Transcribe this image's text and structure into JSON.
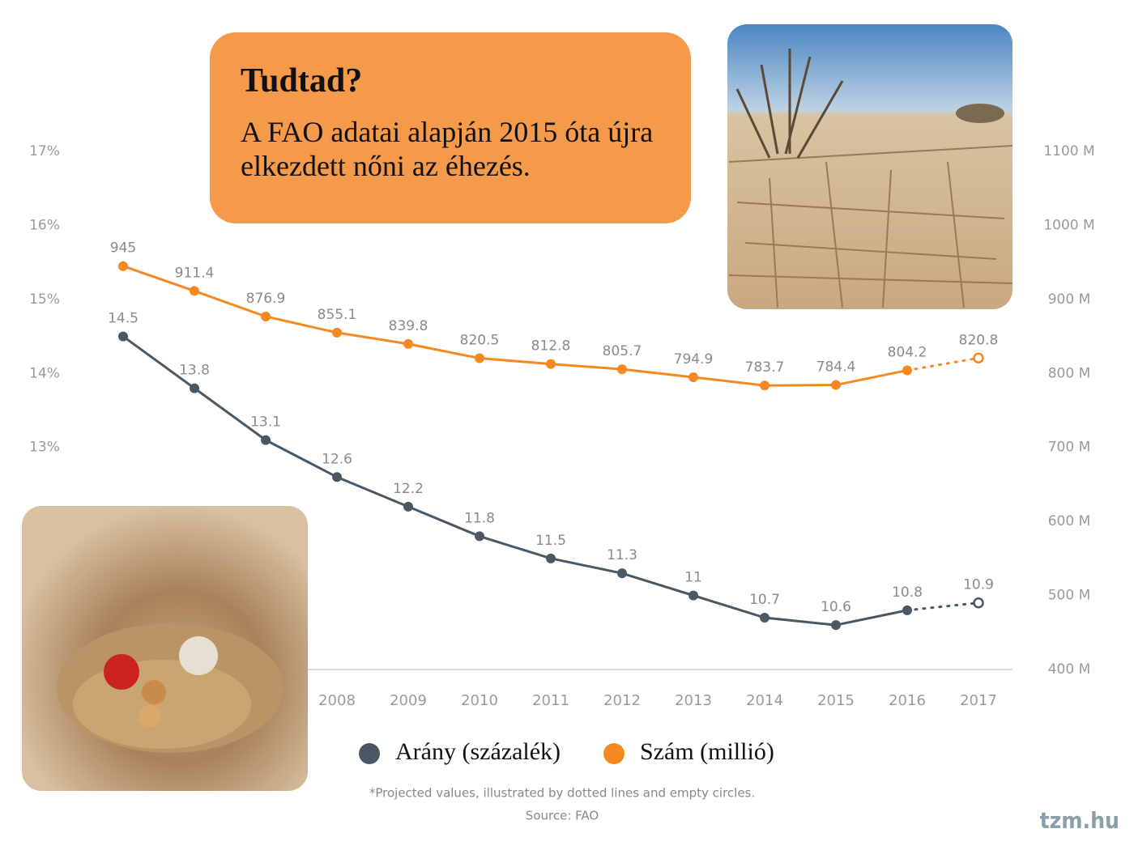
{
  "callout": {
    "title": "Tudtad?",
    "text": "A FAO adatai alapján 2015 óta újra elkezdett nőni az éhezés."
  },
  "chart_data": {
    "type": "line",
    "categories": [
      null,
      null,
      null,
      "2008",
      "2009",
      "2010",
      "2011",
      "2012",
      "2013",
      "2014",
      "2015",
      "2016",
      "2017"
    ],
    "series": [
      {
        "name": "Arány (százalék)",
        "color": "#4a5866",
        "values": [
          14.5,
          13.8,
          13.1,
          12.6,
          12.2,
          11.8,
          11.5,
          11.3,
          11,
          10.7,
          10.6,
          10.8,
          10.9
        ]
      },
      {
        "name": "Szám (millió)",
        "color": "#f5891f",
        "axis": "y2",
        "values": [
          945,
          911.4,
          876.9,
          855.1,
          839.8,
          820.5,
          812.8,
          805.7,
          794.9,
          783.7,
          784.4,
          804.2,
          820.8
        ]
      }
    ],
    "projected_categories": [
      "2017"
    ],
    "ylim": [
      10,
      17
    ],
    "yticks": [
      {
        "value": 13,
        "label": "13%"
      },
      {
        "value": 14,
        "label": "14%"
      },
      {
        "value": 15,
        "label": "15%"
      },
      {
        "value": 16,
        "label": "16%"
      },
      {
        "value": 17,
        "label": "17%"
      }
    ],
    "y2lim": [
      400,
      1100
    ],
    "y2ticks": [
      {
        "value": 400,
        "label": "400 M"
      },
      {
        "value": 500,
        "label": "500 M"
      },
      {
        "value": 600,
        "label": "600 M"
      },
      {
        "value": 700,
        "label": "700 M"
      },
      {
        "value": 800,
        "label": "800 M"
      },
      {
        "value": 900,
        "label": "900 M"
      },
      {
        "value": 1000,
        "label": "1000 M"
      },
      {
        "value": 1100,
        "label": "1100 M"
      }
    ],
    "footnote": "*Projected values, illustrated by dotted lines and empty circles.",
    "source": "Source: FAO"
  },
  "watermark": "tzm.hu"
}
